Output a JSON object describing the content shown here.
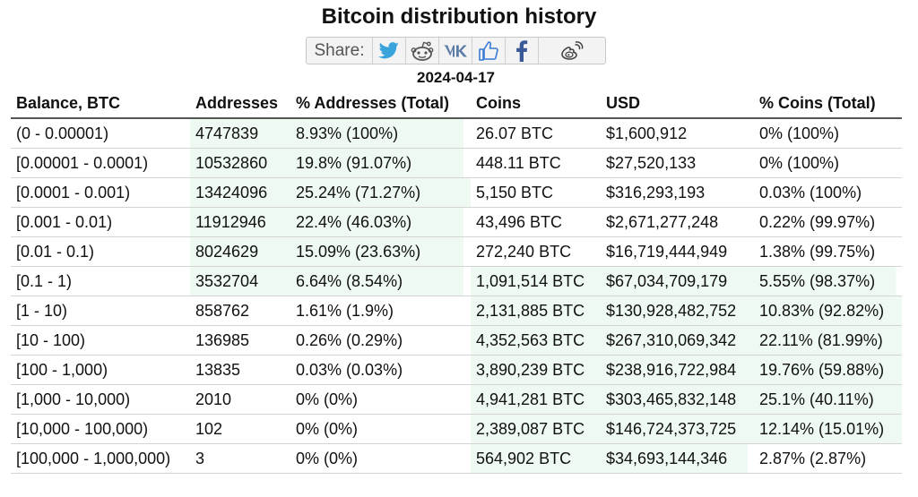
{
  "title": "Bitcoin distribution history",
  "share": {
    "label": "Share:",
    "buttons": [
      "twitter-icon",
      "reddit-icon",
      "vk-icon",
      "like-icon",
      "facebook-icon",
      "weibo-icon"
    ]
  },
  "date": "2024-04-17",
  "table": {
    "headers": [
      "Balance, BTC",
      "Addresses",
      "% Addresses (Total)",
      "Coins",
      "USD",
      "% Coins (Total)"
    ],
    "rows": [
      [
        "(0 - 0.00001)",
        "4747839",
        "8.93% (100%)",
        "26.07 BTC",
        "$1,600,912",
        "0% (100%)"
      ],
      [
        "[0.00001 - 0.0001)",
        "10532860",
        "19.8% (91.07%)",
        "448.11 BTC",
        "$27,520,133",
        "0% (100%)"
      ],
      [
        "[0.0001 - 0.001)",
        "13424096",
        "25.24% (71.27%)",
        "5,150 BTC",
        "$316,293,193",
        "0.03% (100%)"
      ],
      [
        "[0.001 - 0.01)",
        "11912946",
        "22.4% (46.03%)",
        "43,496 BTC",
        "$2,671,277,248",
        "0.22% (99.97%)"
      ],
      [
        "[0.01 - 0.1)",
        "8024629",
        "15.09% (23.63%)",
        "272,240 BTC",
        "$16,719,444,949",
        "1.38% (99.75%)"
      ],
      [
        "[0.1 - 1)",
        "3532704",
        "6.64% (8.54%)",
        "1,091,514 BTC",
        "$67,034,709,179",
        "5.55% (98.37%)"
      ],
      [
        "[1 - 10)",
        "858762",
        "1.61% (1.9%)",
        "2,131,885 BTC",
        "$130,928,482,752",
        "10.83% (92.82%)"
      ],
      [
        "[10 - 100)",
        "136985",
        "0.26% (0.29%)",
        "4,352,563 BTC",
        "$267,310,069,342",
        "22.11% (81.99%)"
      ],
      [
        "[100 - 1,000)",
        "13835",
        "0.03% (0.03%)",
        "3,890,239 BTC",
        "$238,916,722,984",
        "19.76% (59.88%)"
      ],
      [
        "[1,000 - 10,000)",
        "2010",
        "0% (0%)",
        "4,941,281 BTC",
        "$303,465,832,148",
        "25.1% (40.11%)"
      ],
      [
        "[10,000 - 100,000)",
        "102",
        "0% (0%)",
        "2,389,087 BTC",
        "$146,724,373,725",
        "12.14% (15.01%)"
      ],
      [
        "[100,000 - 1,000,000)",
        "3",
        "0% (0%)",
        "564,902 BTC",
        "$34,693,144,346",
        "2.87% (2.87%)"
      ]
    ],
    "highlight_color": "#eef9f2"
  }
}
